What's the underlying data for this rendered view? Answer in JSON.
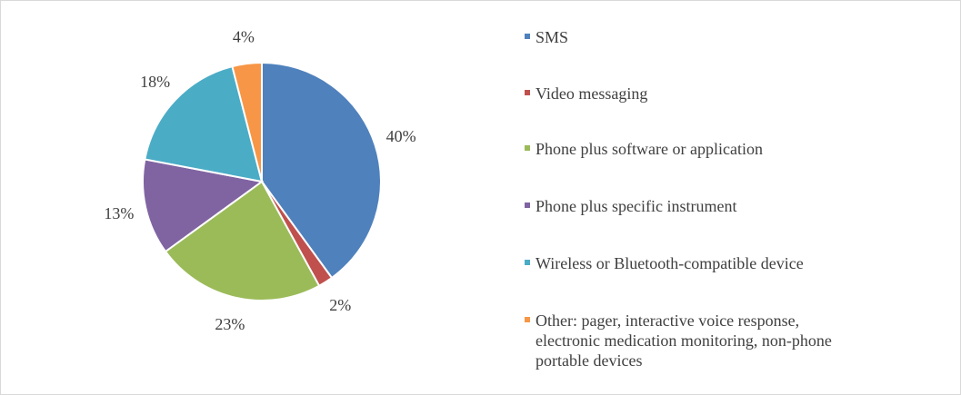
{
  "chart_data": {
    "type": "pie",
    "title": "",
    "legend_position": "right",
    "start_angle": "top, clockwise",
    "slices": [
      {
        "label": "SMS",
        "value": 40,
        "data_label": "40%",
        "color": "#4F81BD"
      },
      {
        "label": "Video messaging",
        "value": 2,
        "data_label": "2%",
        "color": "#C0504D"
      },
      {
        "label": "Phone plus software or application",
        "value": 23,
        "data_label": "23%",
        "color": "#9BBB59"
      },
      {
        "label": "Phone plus specific instrument",
        "value": 13,
        "data_label": "13%",
        "color": "#8064A2"
      },
      {
        "label": "Wireless or Bluetooth-compatible device",
        "value": 18,
        "data_label": "18%",
        "color": "#4BACC6"
      },
      {
        "label": "Other: pager, interactive voice response, electronic medication monitoring, non-phone portable devices",
        "label_lines": [
          "Other: pager, interactive voice response,",
          "electronic medication monitoring, non-phone",
          "portable devices"
        ],
        "value": 4,
        "data_label": "4%",
        "color": "#F79646"
      }
    ]
  }
}
